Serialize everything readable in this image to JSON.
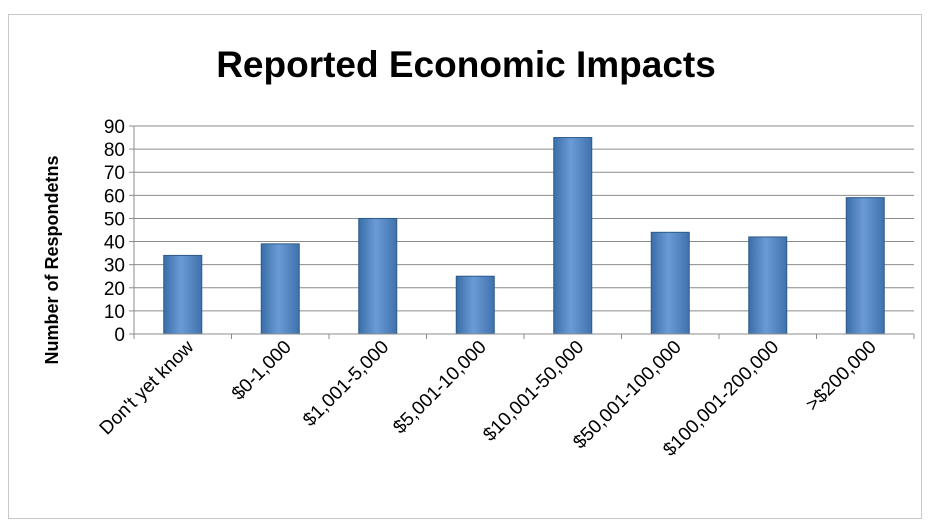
{
  "chart_data": {
    "type": "bar",
    "title": "Reported Economic Impacts",
    "ylabel": "Number of Respondetns",
    "xlabel": "",
    "categories": [
      "Don't yet know",
      "$0-1,000",
      "$1,001-5,000",
      "$5,001-10,000",
      "$10,001-50,000",
      "$50,001-100,000",
      "$100,001-200,000",
      ">$200,000"
    ],
    "values": [
      34,
      39,
      50,
      25,
      85,
      44,
      42,
      59
    ],
    "ylim": [
      0,
      90
    ],
    "yticks": [
      "0",
      "10",
      "20",
      "30",
      "40",
      "50",
      "60",
      "70",
      "80",
      "90"
    ],
    "grid": true,
    "legend": "none",
    "bar_color": "#4f81bd",
    "bar_edge_color": "#2c5a8a"
  }
}
